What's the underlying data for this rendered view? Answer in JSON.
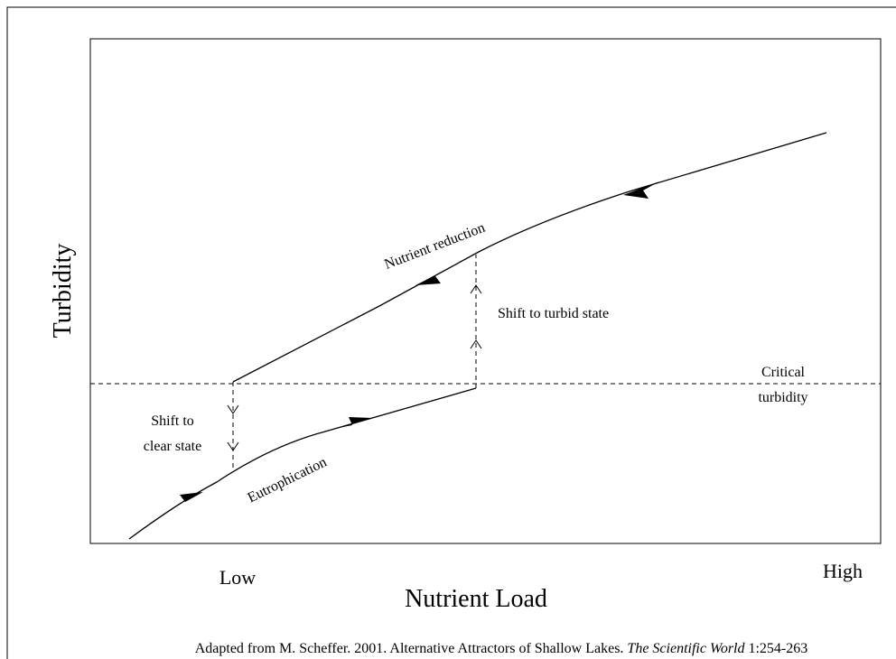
{
  "diagram": {
    "y_axis_label": "Turbidity",
    "x_axis_label": "Nutrient Load",
    "x_low": "Low",
    "x_high": "High",
    "upper_branch_label": "Nutrient reduction",
    "lower_branch_label": "Eutrophication",
    "shift_up_label": "Shift to turbid state",
    "shift_down_label": [
      "Shift to",
      "clear state"
    ],
    "threshold_label": [
      "Critical",
      "turbidity"
    ]
  },
  "footer": {
    "prefix": "Adapted from M. Scheffer. 2001. Alternative Attractors of Shallow Lakes. ",
    "journal": "The Scientific World",
    "citation": " 1:254-263"
  }
}
